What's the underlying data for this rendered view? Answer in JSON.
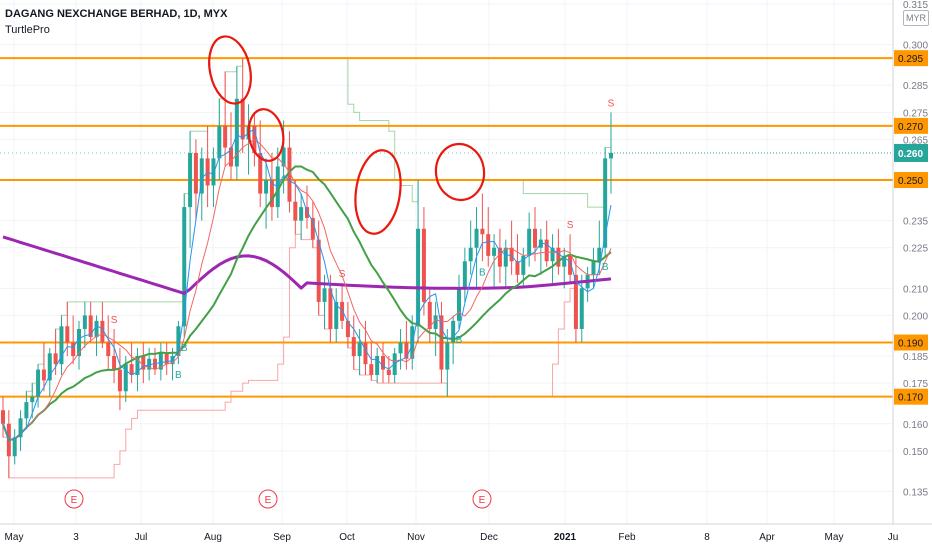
{
  "legend": {
    "symbol_title": "DAGANG NEXCHANGE BERHAD, 1D, MYX",
    "indicator": "TurtlePro"
  },
  "currency": "MYR",
  "colors": {
    "up": "#26a69a",
    "down": "#ef5350",
    "level": "#ff9800",
    "ma_long": "#9c27b0",
    "ma_mid": "#43a047",
    "ma_fast_red": "#f06767",
    "ma_fast_blue": "#2196f3",
    "channel_green": "#a5d6a7",
    "channel_red": "#f8a5a5",
    "annotation": "#e8190e",
    "last_price_bg": "#26a69a",
    "earnings": "#f23645"
  },
  "chart_data": {
    "type": "candlestick",
    "x_ticks": [
      "May",
      "3",
      "Jul",
      "Aug",
      "Sep",
      "Oct",
      "Nov",
      "Dec",
      "2021",
      "Feb",
      "8",
      "Apr",
      "May",
      "Ju"
    ],
    "y_ticks": [
      0.315,
      0.3,
      0.285,
      0.275,
      0.265,
      0.235,
      0.225,
      0.21,
      0.2,
      0.185,
      0.175,
      0.16,
      0.15,
      0.135
    ],
    "ylim": [
      0.127,
      0.318
    ],
    "horizontal_levels": [
      0.295,
      0.27,
      0.25,
      0.19,
      0.17
    ],
    "last_price": 0.26,
    "earnings_markers": [
      "E",
      "E",
      "E"
    ],
    "signal_labels": {
      "buy": [
        "B",
        "B",
        "B",
        "B",
        "B"
      ],
      "sell": [
        "S",
        "S",
        "S",
        "S"
      ]
    },
    "candles": [
      [
        0.165,
        0.17,
        0.155,
        0.16
      ],
      [
        0.16,
        0.165,
        0.14,
        0.148
      ],
      [
        0.148,
        0.158,
        0.145,
        0.155
      ],
      [
        0.155,
        0.165,
        0.15,
        0.162
      ],
      [
        0.162,
        0.172,
        0.158,
        0.168
      ],
      [
        0.168,
        0.175,
        0.162,
        0.17
      ],
      [
        0.17,
        0.182,
        0.166,
        0.18
      ],
      [
        0.18,
        0.19,
        0.172,
        0.176
      ],
      [
        0.176,
        0.188,
        0.17,
        0.186
      ],
      [
        0.186,
        0.195,
        0.178,
        0.182
      ],
      [
        0.182,
        0.2,
        0.178,
        0.196
      ],
      [
        0.196,
        0.205,
        0.185,
        0.19
      ],
      [
        0.19,
        0.2,
        0.182,
        0.185
      ],
      [
        0.185,
        0.198,
        0.18,
        0.195
      ],
      [
        0.195,
        0.205,
        0.188,
        0.2
      ],
      [
        0.2,
        0.205,
        0.19,
        0.192
      ],
      [
        0.192,
        0.2,
        0.185,
        0.198
      ],
      [
        0.198,
        0.205,
        0.188,
        0.19
      ],
      [
        0.19,
        0.2,
        0.18,
        0.185
      ],
      [
        0.185,
        0.195,
        0.175,
        0.18
      ],
      [
        0.18,
        0.188,
        0.165,
        0.172
      ],
      [
        0.172,
        0.185,
        0.168,
        0.182
      ],
      [
        0.182,
        0.19,
        0.175,
        0.178
      ],
      [
        0.178,
        0.188,
        0.172,
        0.185
      ],
      [
        0.185,
        0.19,
        0.175,
        0.18
      ],
      [
        0.18,
        0.188,
        0.176,
        0.184
      ],
      [
        0.184,
        0.188,
        0.178,
        0.18
      ],
      [
        0.18,
        0.19,
        0.176,
        0.186
      ],
      [
        0.186,
        0.19,
        0.178,
        0.182
      ],
      [
        0.182,
        0.188,
        0.176,
        0.185
      ],
      [
        0.185,
        0.198,
        0.182,
        0.196
      ],
      [
        0.196,
        0.245,
        0.192,
        0.24
      ],
      [
        0.24,
        0.268,
        0.225,
        0.26
      ],
      [
        0.26,
        0.265,
        0.235,
        0.245
      ],
      [
        0.245,
        0.262,
        0.235,
        0.258
      ],
      [
        0.258,
        0.27,
        0.24,
        0.248
      ],
      [
        0.248,
        0.262,
        0.24,
        0.258
      ],
      [
        0.258,
        0.28,
        0.25,
        0.27
      ],
      [
        0.27,
        0.29,
        0.255,
        0.262
      ],
      [
        0.262,
        0.275,
        0.25,
        0.255
      ],
      [
        0.255,
        0.292,
        0.25,
        0.28
      ],
      [
        0.28,
        0.295,
        0.26,
        0.265
      ],
      [
        0.265,
        0.278,
        0.252,
        0.27
      ],
      [
        0.27,
        0.275,
        0.255,
        0.26
      ],
      [
        0.26,
        0.272,
        0.24,
        0.245
      ],
      [
        0.245,
        0.258,
        0.232,
        0.25
      ],
      [
        0.25,
        0.26,
        0.235,
        0.24
      ],
      [
        0.24,
        0.262,
        0.236,
        0.255
      ],
      [
        0.255,
        0.272,
        0.245,
        0.262
      ],
      [
        0.262,
        0.268,
        0.238,
        0.242
      ],
      [
        0.242,
        0.25,
        0.23,
        0.235
      ],
      [
        0.235,
        0.245,
        0.228,
        0.24
      ],
      [
        0.24,
        0.248,
        0.232,
        0.236
      ],
      [
        0.236,
        0.242,
        0.225,
        0.228
      ],
      [
        0.228,
        0.235,
        0.2,
        0.205
      ],
      [
        0.205,
        0.215,
        0.195,
        0.21
      ],
      [
        0.21,
        0.215,
        0.19,
        0.195
      ],
      [
        0.195,
        0.21,
        0.19,
        0.205
      ],
      [
        0.205,
        0.212,
        0.195,
        0.198
      ],
      [
        0.198,
        0.205,
        0.188,
        0.192
      ],
      [
        0.192,
        0.2,
        0.18,
        0.185
      ],
      [
        0.185,
        0.195,
        0.178,
        0.19
      ],
      [
        0.19,
        0.198,
        0.178,
        0.182
      ],
      [
        0.182,
        0.19,
        0.176,
        0.178
      ],
      [
        0.178,
        0.188,
        0.175,
        0.185
      ],
      [
        0.185,
        0.19,
        0.175,
        0.18
      ],
      [
        0.18,
        0.185,
        0.175,
        0.178
      ],
      [
        0.178,
        0.188,
        0.175,
        0.186
      ],
      [
        0.186,
        0.195,
        0.18,
        0.19
      ],
      [
        0.19,
        0.198,
        0.18,
        0.184
      ],
      [
        0.184,
        0.2,
        0.18,
        0.196
      ],
      [
        0.196,
        0.25,
        0.19,
        0.232
      ],
      [
        0.232,
        0.24,
        0.2,
        0.205
      ],
      [
        0.205,
        0.21,
        0.19,
        0.195
      ],
      [
        0.195,
        0.205,
        0.185,
        0.2
      ],
      [
        0.2,
        0.205,
        0.175,
        0.18
      ],
      [
        0.18,
        0.195,
        0.17,
        0.19
      ],
      [
        0.19,
        0.2,
        0.182,
        0.198
      ],
      [
        0.198,
        0.215,
        0.195,
        0.21
      ],
      [
        0.21,
        0.225,
        0.205,
        0.22
      ],
      [
        0.22,
        0.235,
        0.215,
        0.225
      ],
      [
        0.225,
        0.24,
        0.21,
        0.232
      ],
      [
        0.232,
        0.245,
        0.22,
        0.23
      ],
      [
        0.23,
        0.24,
        0.218,
        0.222
      ],
      [
        0.222,
        0.23,
        0.21,
        0.225
      ],
      [
        0.225,
        0.232,
        0.212,
        0.218
      ],
      [
        0.218,
        0.228,
        0.21,
        0.225
      ],
      [
        0.225,
        0.235,
        0.215,
        0.22
      ],
      [
        0.22,
        0.23,
        0.212,
        0.215
      ],
      [
        0.215,
        0.225,
        0.21,
        0.222
      ],
      [
        0.222,
        0.238,
        0.218,
        0.232
      ],
      [
        0.232,
        0.24,
        0.22,
        0.225
      ],
      [
        0.225,
        0.232,
        0.215,
        0.228
      ],
      [
        0.228,
        0.235,
        0.218,
        0.22
      ],
      [
        0.22,
        0.23,
        0.212,
        0.225
      ],
      [
        0.225,
        0.232,
        0.215,
        0.218
      ],
      [
        0.218,
        0.225,
        0.21,
        0.222
      ],
      [
        0.222,
        0.23,
        0.212,
        0.215
      ],
      [
        0.215,
        0.222,
        0.19,
        0.195
      ],
      [
        0.195,
        0.215,
        0.19,
        0.21
      ],
      [
        0.21,
        0.218,
        0.205,
        0.215
      ],
      [
        0.215,
        0.225,
        0.21,
        0.22
      ],
      [
        0.22,
        0.235,
        0.215,
        0.225
      ],
      [
        0.225,
        0.262,
        0.222,
        0.258
      ],
      [
        0.258,
        0.275,
        0.245,
        0.26
      ]
    ]
  }
}
